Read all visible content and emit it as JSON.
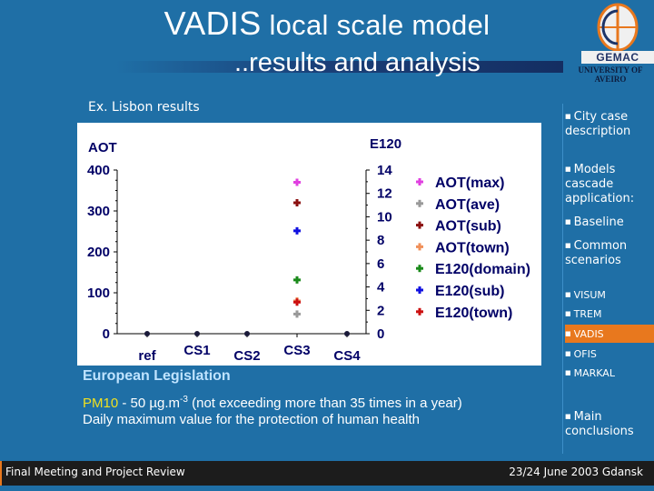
{
  "slide": {
    "title_lead": "VADIS",
    "title_rest": " local scale model",
    "subtitle": "..results and analysis",
    "logo_text": "GEMAC",
    "logo_university": "UNIVERSITY OF AVEIRO",
    "example_label": "Ex. Lisbon results"
  },
  "nav": {
    "items": [
      {
        "label": "City case description"
      },
      {
        "label": "Models cascade application:"
      },
      {
        "label": "Baseline"
      },
      {
        "label": "Common scenarios"
      },
      {
        "label": "VISUM"
      },
      {
        "label": "TREM"
      },
      {
        "label": "VADIS"
      },
      {
        "label": "OFIS"
      },
      {
        "label": "MARKAL"
      },
      {
        "label": "Main conclusions"
      }
    ]
  },
  "legislation": {
    "heading": "European Legislation",
    "pm_label": "PM10",
    "pm_value": " - 50 µg.m",
    "pm_exp": "-3",
    "pm_note": " (not exceeding more than 35 times in a year)",
    "line2": "Daily maximum value for the protection of human health"
  },
  "footer": {
    "left": "Final Meeting and Project Review",
    "right": "23/24 June 2003 Gdansk"
  },
  "colors": {
    "background": "#1f6fa6",
    "accent": "#e8781e",
    "aot_max": "#e040e0",
    "aot_ave": "#999999",
    "aot_sub": "#8b1010",
    "aot_town": "#f0905a",
    "e120_domain": "#1a8a1a",
    "e120_sub": "#1010e0",
    "e120_town": "#cc1010"
  },
  "chart_data": {
    "type": "scatter",
    "categories": [
      "ref",
      "CS1",
      "CS2",
      "CS3",
      "CS4"
    ],
    "left_axis": {
      "label": "AOT",
      "ylim": [
        0,
        400
      ],
      "ticks": [
        0,
        100,
        200,
        300,
        400
      ]
    },
    "right_axis": {
      "label": "E120",
      "ylim": [
        0,
        14
      ],
      "ticks": [
        0,
        2,
        4,
        6,
        8,
        10,
        12,
        14
      ]
    },
    "series": [
      {
        "name": "AOT(max)",
        "axis": "left",
        "values": [
          0,
          0,
          0,
          370,
          0
        ]
      },
      {
        "name": "AOT(ave)",
        "axis": "left",
        "values": [
          0,
          0,
          0,
          48,
          0
        ]
      },
      {
        "name": "AOT(sub)",
        "axis": "left",
        "values": [
          0,
          0,
          0,
          320,
          0
        ]
      },
      {
        "name": "AOT(town)",
        "axis": "left",
        "values": [
          0,
          0,
          0,
          80,
          0
        ]
      },
      {
        "name": "E120(domain)",
        "axis": "right",
        "values": [
          0,
          0,
          0,
          4.6,
          0
        ]
      },
      {
        "name": "E120(sub)",
        "axis": "right",
        "values": [
          0,
          0,
          0,
          8.8,
          0
        ]
      },
      {
        "name": "E120(town)",
        "axis": "right",
        "values": [
          0,
          0,
          0,
          2.7,
          0
        ]
      }
    ]
  }
}
